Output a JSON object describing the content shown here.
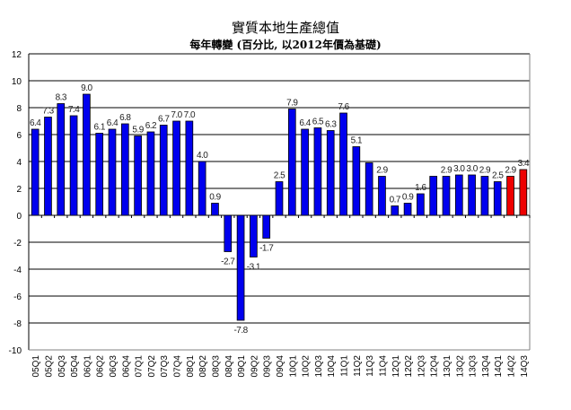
{
  "chart_data": {
    "type": "bar",
    "title": "實質本地生產總值",
    "subtitle": "每年轉變 (百分比, 以2012年價為基礎)",
    "xlabel": "",
    "ylabel": "",
    "ylim": [
      -10,
      12
    ],
    "yticks": [
      12,
      10,
      8,
      6,
      4,
      2,
      0,
      -2,
      -4,
      -6,
      -8,
      -10
    ],
    "grid": true,
    "categories": [
      "05Q1",
      "05Q2",
      "05Q3",
      "05Q4",
      "06Q1",
      "06Q2",
      "06Q3",
      "06Q4",
      "07Q1",
      "07Q2",
      "07Q3",
      "07Q4",
      "08Q1",
      "08Q2",
      "08Q3",
      "08Q4",
      "09Q1",
      "09Q2",
      "09Q3",
      "09Q4",
      "10Q1",
      "10Q2",
      "10Q3",
      "10Q4",
      "11Q1",
      "11Q2",
      "11Q3",
      "11Q4",
      "12Q1",
      "12Q2",
      "12Q3",
      "12Q4",
      "13Q1",
      "13Q2",
      "13Q3",
      "13Q4",
      "14Q1",
      "14Q2",
      "14Q3"
    ],
    "values": [
      6.4,
      7.3,
      8.3,
      7.4,
      9.0,
      6.1,
      6.4,
      6.8,
      5.9,
      6.2,
      6.7,
      7.0,
      7.0,
      4.0,
      0.9,
      -2.7,
      -7.8,
      -3.1,
      -1.7,
      2.5,
      7.9,
      6.4,
      6.5,
      6.3,
      7.6,
      5.1,
      3.9,
      2.9,
      0.7,
      0.9,
      1.6,
      2.9,
      2.9,
      3.0,
      3.0,
      2.9,
      2.5,
      2.9,
      3.4
    ],
    "labels": [
      "6.4",
      "7.3",
      "8.3",
      "7.4",
      "9.0",
      "6.1",
      "6.4",
      "6.8",
      "5.9",
      "6.2",
      "6.7",
      "7.0",
      "7.0",
      "4.0",
      "0.9",
      "-2.7",
      "-7.8",
      "-3.1",
      "-1.7",
      "2.5",
      "7.9",
      "6.4",
      "6.5",
      "6.3",
      "7.6",
      "5.1",
      "",
      "2.9",
      "0.7",
      "0.9",
      "1.6",
      "",
      "2.9",
      "3.0",
      "3.0",
      "2.9",
      "2.5",
      "2.9",
      "3.4"
    ],
    "bar_colors": [
      "blue",
      "blue",
      "blue",
      "blue",
      "blue",
      "blue",
      "blue",
      "blue",
      "blue",
      "blue",
      "blue",
      "blue",
      "blue",
      "blue",
      "blue",
      "blue",
      "blue",
      "blue",
      "blue",
      "blue",
      "blue",
      "blue",
      "blue",
      "blue",
      "blue",
      "blue",
      "blue",
      "blue",
      "blue",
      "blue",
      "blue",
      "blue",
      "blue",
      "blue",
      "blue",
      "blue",
      "blue",
      "red",
      "red"
    ],
    "colors": {
      "blue": "#0000ee",
      "red": "#ee0000",
      "grid": "#000000",
      "axis": "#808080"
    }
  }
}
